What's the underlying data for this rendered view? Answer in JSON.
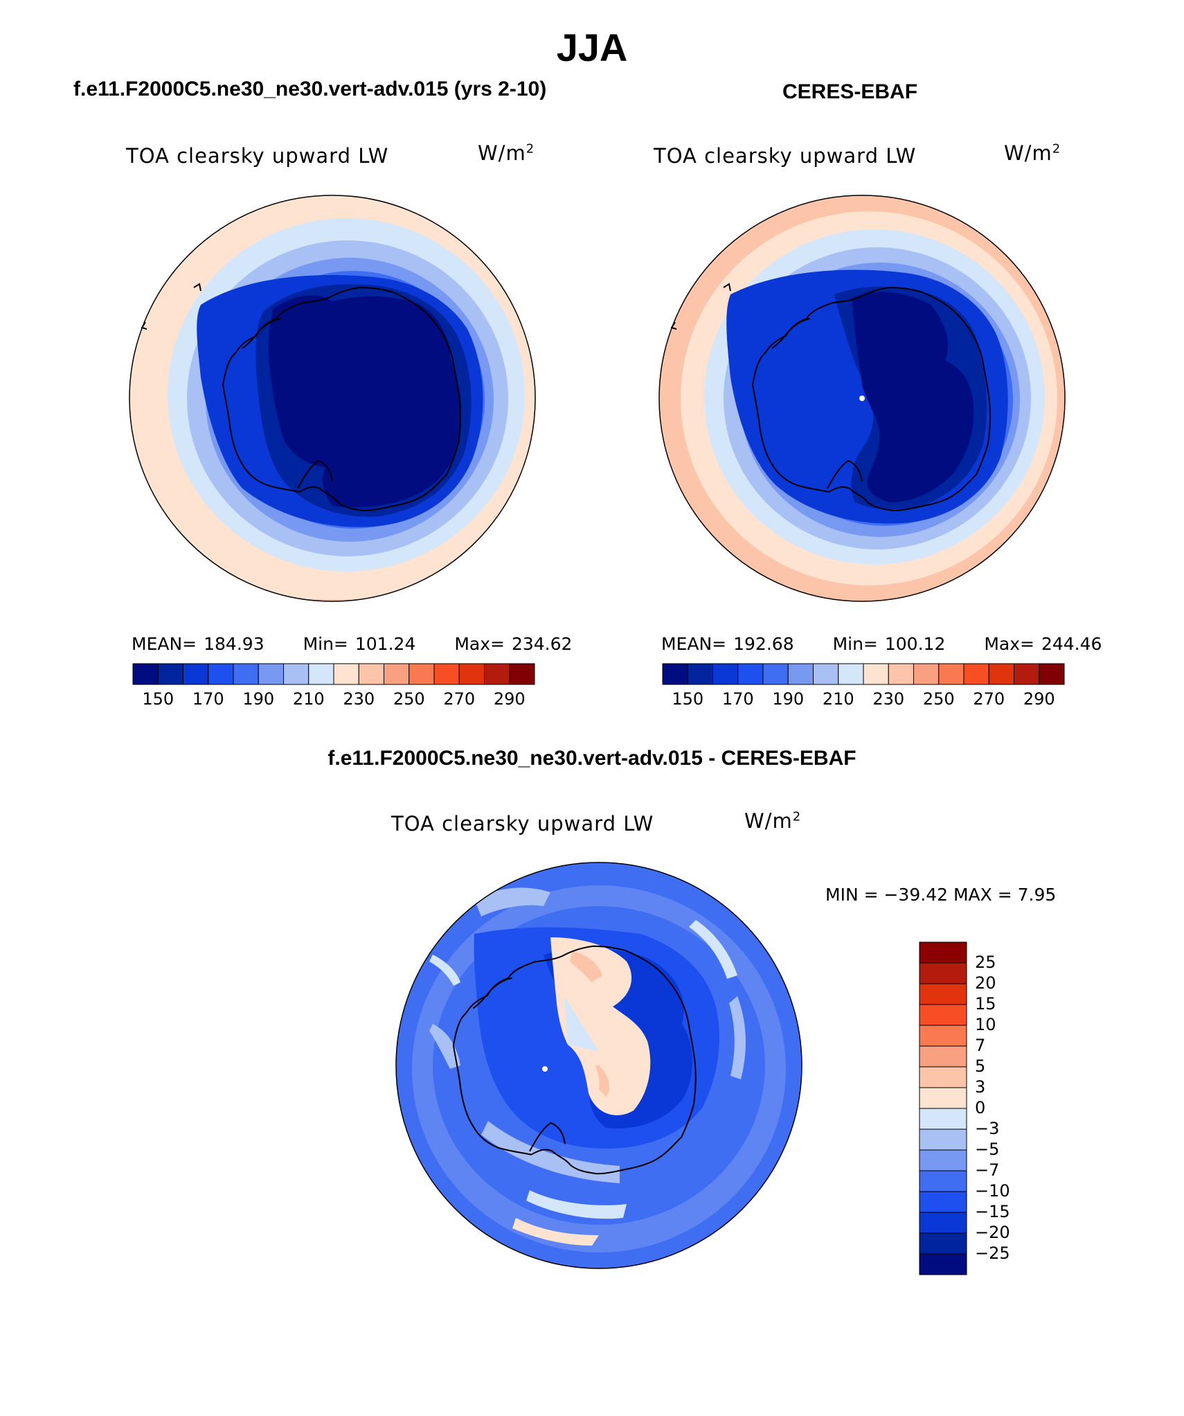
{
  "main_title": "JJA",
  "panels": [
    {
      "case_title": "f.e11.F2000C5.ne30_ne30.vert-adv.015 (yrs 2-10)",
      "variable": "TOA clearsky upward LW",
      "units_base": "W/m",
      "units_exp": "2",
      "mean_label": "MEAN=",
      "mean": "184.93",
      "min_label": "Min=",
      "min": "101.24",
      "max_label": "Max=",
      "max": "234.62"
    },
    {
      "case_title": "CERES-EBAF",
      "variable": "TOA clearsky upward LW",
      "units_base": "W/m",
      "units_exp": "2",
      "mean_label": "MEAN=",
      "mean": "192.68",
      "min_label": "Min=",
      "min": "100.12",
      "max_label": "Max=",
      "max": "244.46"
    }
  ],
  "diff_panel": {
    "title": "f.e11.F2000C5.ne30_ne30.vert-adv.015 - CERES-EBAF",
    "variable": "TOA clearsky upward LW",
    "units_base": "W/m",
    "units_exp": "2",
    "min_max_text": "MIN = −39.42 MAX =    7.95"
  },
  "chart_data": [
    {
      "type": "heatmap",
      "projection": "south-polar-stereographic",
      "colorbar": {
        "orientation": "horizontal",
        "tick_labels": [
          "150",
          "170",
          "190",
          "210",
          "230",
          "250",
          "270",
          "290"
        ],
        "colors": [
          "#000c80",
          "#00239e",
          "#0a38d6",
          "#1e50f0",
          "#3f6ef2",
          "#7899f2",
          "#a8c0f4",
          "#d4e6fa",
          "#fde3d0",
          "#fcc4a8",
          "#f9a080",
          "#f97a50",
          "#f74e24",
          "#e0330e",
          "#b31b0c",
          "#800004"
        ]
      }
    },
    {
      "type": "heatmap",
      "projection": "south-polar-stereographic",
      "colorbar": {
        "orientation": "horizontal",
        "tick_labels": [
          "150",
          "170",
          "190",
          "210",
          "230",
          "250",
          "270",
          "290"
        ],
        "colors": [
          "#000c80",
          "#00239e",
          "#0a38d6",
          "#1e50f0",
          "#3f6ef2",
          "#7899f2",
          "#a8c0f4",
          "#d4e6fa",
          "#fde3d0",
          "#fcc4a8",
          "#f9a080",
          "#f97a50",
          "#f74e24",
          "#e0330e",
          "#b31b0c",
          "#800004"
        ]
      }
    },
    {
      "type": "heatmap",
      "projection": "south-polar-stereographic",
      "colorbar": {
        "orientation": "vertical",
        "tick_labels": [
          "25",
          "20",
          "15",
          "10",
          "7",
          "5",
          "3",
          "0",
          "−3",
          "−5",
          "−7",
          "−10",
          "−15",
          "−20",
          "−25"
        ],
        "colors": [
          "#8b0000",
          "#b31b0c",
          "#e0330e",
          "#f74e24",
          "#f97a50",
          "#f9a080",
          "#fcc4a8",
          "#fde3d0",
          "#d4e6fa",
          "#a8c0f4",
          "#7899f2",
          "#3f6ef2",
          "#1e50f0",
          "#0a38d6",
          "#00239e",
          "#000c80"
        ]
      }
    }
  ]
}
